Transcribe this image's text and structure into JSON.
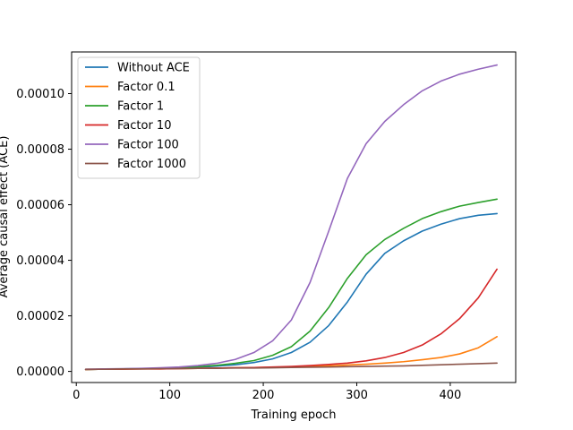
{
  "chart_data": {
    "type": "line",
    "title": "",
    "xlabel": "Training epoch",
    "ylabel": "Average causal effect (ACE)",
    "xlim": [
      -5,
      470
    ],
    "ylim": [
      -4e-06,
      0.000115
    ],
    "xticks": [
      0,
      100,
      200,
      300,
      400
    ],
    "xtick_labels": [
      "0",
      "100",
      "200",
      "300",
      "400"
    ],
    "yticks": [
      0,
      2e-05,
      4e-05,
      6e-05,
      8e-05,
      0.0001
    ],
    "ytick_labels": [
      "0.00000",
      "0.00002",
      "0.00004",
      "0.00006",
      "0.00008",
      "0.00010"
    ],
    "grid": false,
    "legend_position": "upper-left",
    "x": [
      10,
      30,
      50,
      70,
      90,
      110,
      130,
      150,
      170,
      190,
      210,
      230,
      250,
      270,
      290,
      310,
      330,
      350,
      370,
      390,
      410,
      430,
      450
    ],
    "series": [
      {
        "name": "Without ACE",
        "color": "#1f77b4",
        "values": [
          7e-07,
          8e-07,
          9e-07,
          1e-06,
          1.1e-06,
          1.3e-06,
          1.5e-06,
          1.9e-06,
          2.4e-06,
          3.2e-06,
          4.5e-06,
          6.8e-06,
          1.05e-05,
          1.65e-05,
          2.5e-05,
          3.5e-05,
          4.25e-05,
          4.7e-05,
          5.05e-05,
          5.3e-05,
          5.5e-05,
          5.62e-05,
          5.68e-05
        ]
      },
      {
        "name": "Factor 0.1",
        "color": "#ff7f0e",
        "values": [
          7e-07,
          8e-07,
          8e-07,
          9e-07,
          9e-07,
          1e-06,
          1.1e-06,
          1.2e-06,
          1.3e-06,
          1.4e-06,
          1.5e-06,
          1.6e-06,
          1.8e-06,
          2e-06,
          2.3e-06,
          2.6e-06,
          3e-06,
          3.5e-06,
          4.2e-06,
          5e-06,
          6.3e-06,
          8.5e-06,
          1.25e-05
        ]
      },
      {
        "name": "Factor 1",
        "color": "#2ca02c",
        "values": [
          7e-07,
          8e-07,
          9e-07,
          1e-06,
          1.2e-06,
          1.4e-06,
          1.7e-06,
          2.2e-06,
          2.9e-06,
          3.9e-06,
          5.8e-06,
          8.9e-06,
          1.45e-05,
          2.3e-05,
          3.35e-05,
          4.2e-05,
          4.75e-05,
          5.15e-05,
          5.5e-05,
          5.75e-05,
          5.95e-05,
          6.08e-05,
          6.2e-05
        ]
      },
      {
        "name": "Factor 10",
        "color": "#d62728",
        "values": [
          7e-07,
          8e-07,
          8e-07,
          9e-07,
          9e-07,
          1e-06,
          1.1e-06,
          1.2e-06,
          1.3e-06,
          1.4e-06,
          1.6e-06,
          1.8e-06,
          2.1e-06,
          2.5e-06,
          3e-06,
          3.8e-06,
          5e-06,
          6.8e-06,
          9.5e-06,
          1.35e-05,
          1.9e-05,
          2.65e-05,
          3.68e-05
        ]
      },
      {
        "name": "Factor 100",
        "color": "#9467bd",
        "values": [
          8e-07,
          9e-07,
          1e-06,
          1.1e-06,
          1.3e-06,
          1.6e-06,
          2.1e-06,
          2.9e-06,
          4.3e-06,
          6.8e-06,
          1.1e-05,
          1.85e-05,
          3.2e-05,
          5.05e-05,
          6.95e-05,
          8.2e-05,
          9e-05,
          9.6e-05,
          0.000101,
          0.0001045,
          0.000107,
          0.0001088,
          0.0001103
        ]
      },
      {
        "name": "Factor 1000",
        "color": "#8c564b",
        "values": [
          8e-07,
          8e-07,
          9e-07,
          9e-07,
          1e-06,
          1e-06,
          1.1e-06,
          1.1e-06,
          1.2e-06,
          1.2e-06,
          1.3e-06,
          1.4e-06,
          1.5e-06,
          1.6e-06,
          1.7e-06,
          1.8e-06,
          1.9e-06,
          2e-06,
          2.2e-06,
          2.4e-06,
          2.6e-06,
          2.8e-06,
          3e-06
        ]
      }
    ]
  }
}
